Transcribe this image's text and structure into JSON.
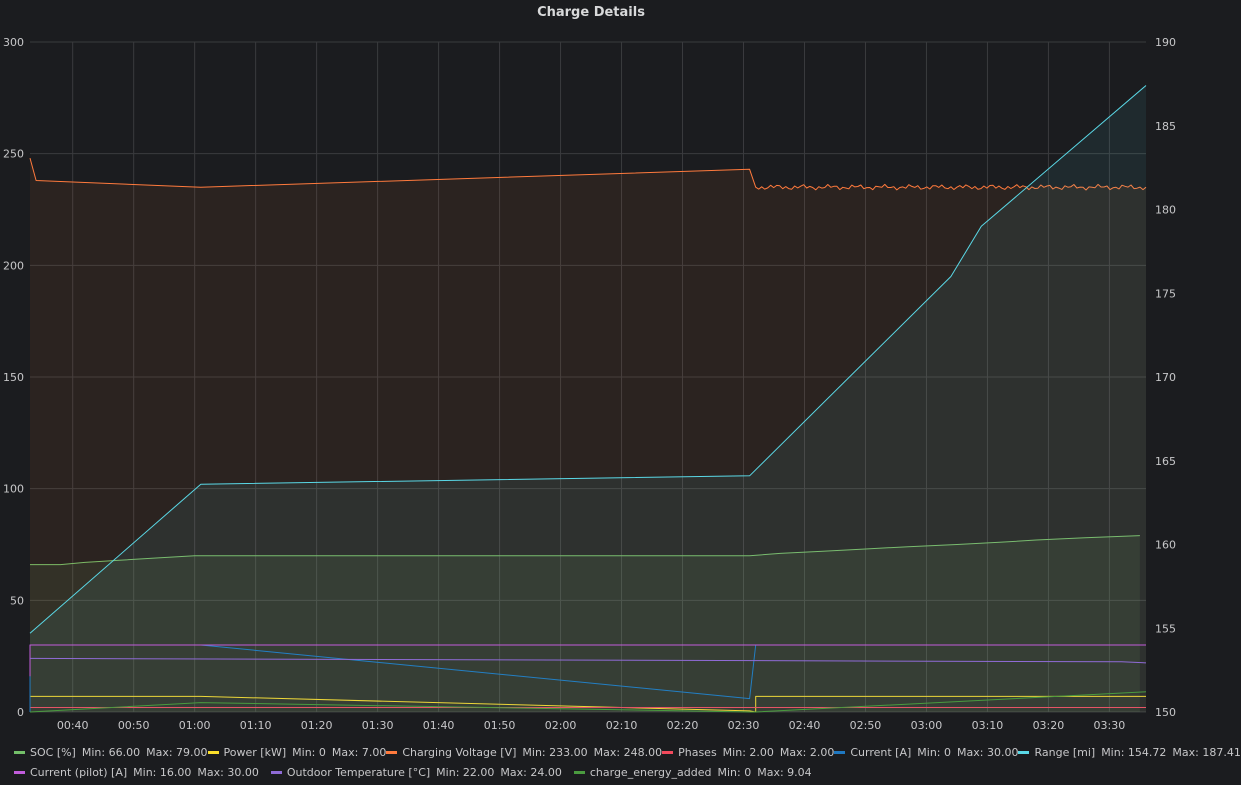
{
  "title": "Charge Details",
  "chart_data": {
    "type": "line",
    "title": "Charge Details",
    "x_axis": {
      "ticks": [
        "00:40",
        "00:50",
        "01:00",
        "01:10",
        "01:20",
        "01:30",
        "01:40",
        "01:50",
        "02:00",
        "02:10",
        "02:20",
        "02:30",
        "02:40",
        "02:50",
        "03:00",
        "03:10",
        "03:20",
        "03:30"
      ],
      "range": [
        "00:33",
        "03:36"
      ]
    },
    "y_left": {
      "ticks": [
        0,
        50,
        100,
        150,
        200,
        250,
        300
      ],
      "range": [
        0,
        300
      ]
    },
    "y_right": {
      "ticks": [
        150,
        155,
        160,
        165,
        170,
        175,
        180,
        185,
        190
      ],
      "range": [
        150,
        190
      ]
    },
    "grid": true,
    "legend_position": "bottom",
    "series": [
      {
        "name": "SOC [%]",
        "color": "#73bf69",
        "axis": "left",
        "fill": true,
        "min_label": "Min:",
        "min": "66.00",
        "max_label": "Max:",
        "max": "79.00",
        "points": [
          [
            "00:33",
            66
          ],
          [
            "00:38",
            66
          ],
          [
            "00:42",
            67
          ],
          [
            "00:48",
            68
          ],
          [
            "00:54",
            69
          ],
          [
            "01:00",
            70
          ],
          [
            "02:31",
            70
          ],
          [
            "02:36",
            71
          ],
          [
            "02:43",
            72
          ],
          [
            "02:50",
            73
          ],
          [
            "02:57",
            74
          ],
          [
            "03:05",
            75
          ],
          [
            "03:12",
            76
          ],
          [
            "03:18",
            77
          ],
          [
            "03:26",
            78
          ],
          [
            "03:35",
            79
          ]
        ]
      },
      {
        "name": "Power [kW]",
        "color": "#fade2a",
        "axis": "left",
        "fill": false,
        "min_label": "Min:",
        "min": "0",
        "max_label": "Max:",
        "max": "7.00",
        "points": [
          [
            "00:33",
            0
          ],
          [
            "00:33",
            7
          ],
          [
            "01:01",
            7
          ],
          [
            "02:31",
            0.5
          ],
          [
            "02:32",
            0
          ],
          [
            "02:32",
            7
          ],
          [
            "03:36",
            7
          ]
        ]
      },
      {
        "name": "Charging Voltage [V]",
        "color": "#ff7a3d",
        "axis": "left",
        "fill": true,
        "noisy": true,
        "min_label": "Min:",
        "min": "233.00",
        "max_label": "Max:",
        "max": "248.00",
        "points": [
          [
            "00:33",
            248
          ],
          [
            "00:34",
            238
          ],
          [
            "01:01",
            235
          ],
          [
            "02:31",
            243
          ],
          [
            "02:32",
            235
          ],
          [
            "03:36",
            235
          ]
        ]
      },
      {
        "name": "Phases",
        "color": "#f2495c",
        "axis": "left",
        "fill": false,
        "min_label": "Min:",
        "min": "2.00",
        "max_label": "Max:",
        "max": "2.00",
        "points": [
          [
            "00:33",
            2
          ],
          [
            "03:36",
            2
          ]
        ]
      },
      {
        "name": "Current [A]",
        "color": "#1f78c1",
        "axis": "left",
        "fill": false,
        "min_label": "Min:",
        "min": "0",
        "max_label": "Max:",
        "max": "30.00",
        "points": [
          [
            "00:33",
            0
          ],
          [
            "00:33",
            30
          ],
          [
            "01:01",
            30
          ],
          [
            "02:31",
            6
          ],
          [
            "02:32",
            30
          ],
          [
            "03:36",
            30
          ]
        ]
      },
      {
        "name": "Range [mi]",
        "color": "#5ad8e6",
        "axis": "right",
        "fill": true,
        "min_label": "Min:",
        "min": "154.72",
        "max_label": "Max:",
        "max": "187.41",
        "points": [
          [
            "00:33",
            154.7
          ],
          [
            "01:01",
            163.6
          ],
          [
            "02:31",
            164.1
          ],
          [
            "03:04",
            176.0
          ],
          [
            "03:09",
            179.0
          ],
          [
            "03:36",
            187.4
          ]
        ]
      },
      {
        "name": "Current (pilot) [A]",
        "color": "#c15cdb",
        "axis": "left",
        "fill": false,
        "min_label": "Min:",
        "min": "16.00",
        "max_label": "Max:",
        "max": "30.00",
        "points": [
          [
            "00:33",
            16
          ],
          [
            "00:33",
            30
          ],
          [
            "03:36",
            30
          ]
        ]
      },
      {
        "name": "Outdoor Temperature [°C]",
        "color": "#8f6bd6",
        "axis": "left",
        "fill": false,
        "min_label": "Min:",
        "min": "22.00",
        "max_label": "Max:",
        "max": "24.00",
        "points": [
          [
            "00:33",
            24
          ],
          [
            "03:32",
            22.5
          ],
          [
            "03:36",
            22
          ]
        ]
      },
      {
        "name": "charge_energy_added",
        "color": "#4a9b3f",
        "axis": "left",
        "fill": false,
        "min_label": "Min:",
        "min": "0",
        "max_label": "Max:",
        "max": "9.04",
        "points": [
          [
            "00:33",
            0
          ],
          [
            "01:01",
            4.2
          ],
          [
            "02:31",
            0
          ],
          [
            "02:32",
            0
          ],
          [
            "03:36",
            9.04
          ]
        ]
      }
    ]
  }
}
